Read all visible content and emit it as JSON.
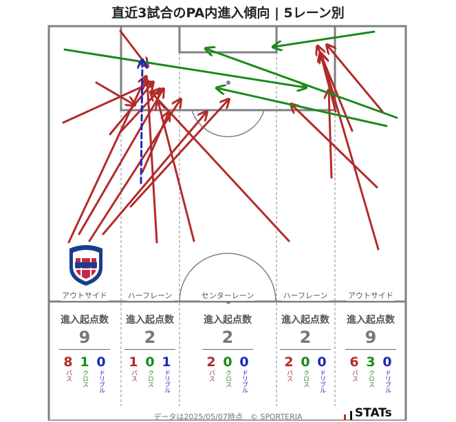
{
  "title": "直近3試合のPA内進入傾向 | 5レーン別",
  "lanes": [
    {
      "name": "アウトサイド",
      "head": "進入起点数",
      "total": "9",
      "pass": "8",
      "cross": "1",
      "dribble": "0"
    },
    {
      "name": "ハーフレーン",
      "head": "進入起点数",
      "total": "2",
      "pass": "1",
      "cross": "0",
      "dribble": "1"
    },
    {
      "name": "センターレーン",
      "head": "進入起点数",
      "total": "2",
      "pass": "2",
      "cross": "0",
      "dribble": "0"
    },
    {
      "name": "ハーフレーン",
      "head": "進入起点数",
      "total": "2",
      "pass": "2",
      "cross": "0",
      "dribble": "0"
    },
    {
      "name": "アウトサイド",
      "head": "進入起点数",
      "total": "9",
      "pass": "6",
      "cross": "3",
      "dribble": "0"
    }
  ],
  "labels": {
    "pass": "パス",
    "cross": "クロス",
    "dribble": "ドリブル"
  },
  "footer": "データは2025/05/07時点　© SPORTERIA",
  "brand": "STATs",
  "colors": {
    "pass": "#b22a2a",
    "cross": "#1a8a1a",
    "dribble": "#1a2ab8",
    "line": "#7f7f7f"
  },
  "chart_data": {
    "type": "arrow-map",
    "arrows": [
      {
        "kind": "pass",
        "from": [
          100,
          352
        ],
        "to": [
          212,
          112
        ]
      },
      {
        "kind": "pass",
        "from": [
          115,
          340
        ],
        "to": [
          237,
          130
        ]
      },
      {
        "kind": "pass",
        "from": [
          130,
          350
        ],
        "to": [
          262,
          145
        ]
      },
      {
        "kind": "pass",
        "from": [
          150,
          340
        ],
        "to": [
          300,
          163
        ]
      },
      {
        "kind": "pass",
        "from": [
          190,
          300
        ],
        "to": [
          332,
          145
        ]
      },
      {
        "kind": "pass",
        "from": [
          160,
          195
        ],
        "to": [
          222,
          120
        ]
      },
      {
        "kind": "pass",
        "from": [
          175,
          192
        ],
        "to": [
          232,
          130
        ]
      },
      {
        "kind": "pass",
        "from": [
          92,
          178
        ],
        "to": [
          220,
          120
        ]
      },
      {
        "kind": "pass",
        "from": [
          140,
          120
        ],
        "to": [
          195,
          152
        ]
      },
      {
        "kind": "pass",
        "from": [
          175,
          45
        ],
        "to": [
          214,
          96
        ]
      },
      {
        "kind": "pass",
        "from": [
          228,
          352
        ],
        "to": [
          214,
          118
        ]
      },
      {
        "kind": "pass",
        "from": [
          207,
          250
        ],
        "to": [
          245,
          164
        ]
      },
      {
        "kind": "pass",
        "from": [
          282,
          350
        ],
        "to": [
          230,
          148
        ]
      },
      {
        "kind": "pass",
        "from": [
          420,
          350
        ],
        "to": [
          220,
          134
        ]
      },
      {
        "kind": "pass",
        "from": [
          548,
          272
        ],
        "to": [
          424,
          152
        ]
      },
      {
        "kind": "pass",
        "from": [
          550,
          362
        ],
        "to": [
          468,
          80
        ]
      },
      {
        "kind": "pass",
        "from": [
          482,
          258
        ],
        "to": [
          478,
          132
        ]
      },
      {
        "kind": "pass",
        "from": [
          512,
          190
        ],
        "to": [
          462,
          68
        ]
      },
      {
        "kind": "pass",
        "from": [
          556,
          162
        ],
        "to": [
          476,
          66
        ]
      },
      {
        "kind": "pass",
        "from": [
          488,
          162
        ],
        "to": [
          466,
          78
        ]
      },
      {
        "kind": "cross",
        "from": [
          94,
          72
        ],
        "to": [
          444,
          127
        ]
      },
      {
        "kind": "cross",
        "from": [
          544,
          46
        ],
        "to": [
          398,
          68
        ]
      },
      {
        "kind": "cross",
        "from": [
          577,
          171
        ],
        "to": [
          300,
          71
        ]
      },
      {
        "kind": "cross",
        "from": [
          562,
          183
        ],
        "to": [
          316,
          128
        ]
      },
      {
        "kind": "dribble",
        "from": [
          205,
          266
        ],
        "to": [
          207,
          88
        ]
      }
    ]
  }
}
